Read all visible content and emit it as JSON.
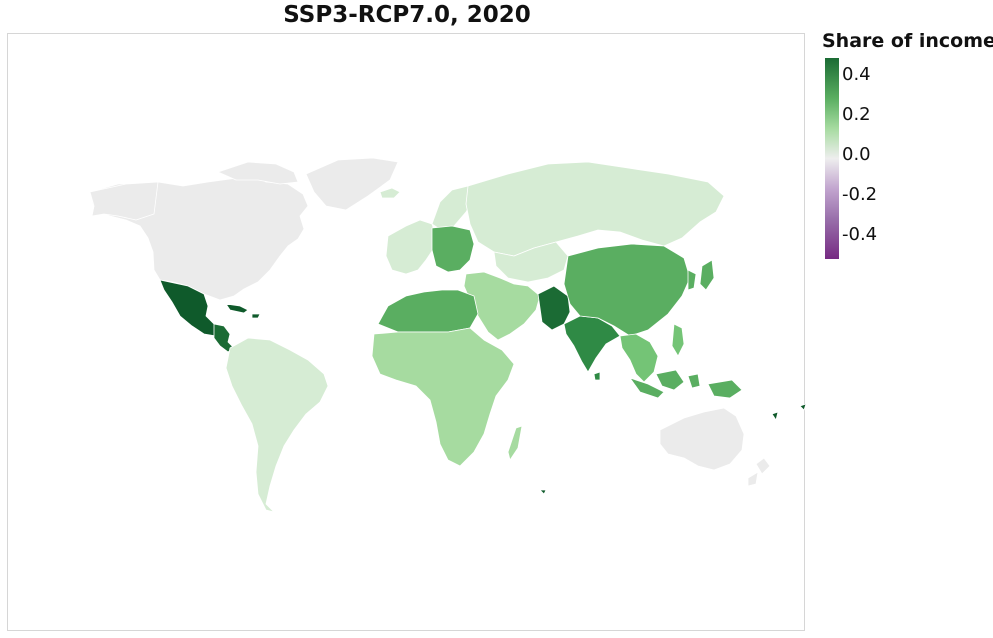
{
  "chart_title": "SSP3-RCP7.0, 2020",
  "legend": {
    "title": "Share of income",
    "ticks": [
      "0.4",
      "0.2",
      "0.0",
      "-0.2",
      "-0.4"
    ],
    "range": [
      -0.5,
      0.5
    ],
    "colors": [
      "#1b6b34",
      "#5aae61",
      "#a6dba0",
      "#eeeeee",
      "#c2a5cf",
      "#9970ab",
      "#762a83"
    ]
  },
  "chart_data": {
    "type": "choropleth",
    "title": "SSP3-RCP7.0, 2020",
    "legend_title": "Share of income",
    "scale": [
      -0.5,
      0.5
    ],
    "regions": [
      {
        "name": "North America",
        "value": 0.0
      },
      {
        "name": "Greenland",
        "value": 0.0
      },
      {
        "name": "Mexico",
        "value": 0.5
      },
      {
        "name": "Central America",
        "value": 0.45
      },
      {
        "name": "Caribbean",
        "value": 0.5
      },
      {
        "name": "South America",
        "value": 0.1
      },
      {
        "name": "Western Europe",
        "value": 0.1
      },
      {
        "name": "Eastern Europe",
        "value": 0.3
      },
      {
        "name": "Russia",
        "value": 0.1
      },
      {
        "name": "North Africa",
        "value": 0.3
      },
      {
        "name": "Sub-Saharan Africa",
        "value": 0.2
      },
      {
        "name": "Middle East",
        "value": 0.2
      },
      {
        "name": "Pakistan",
        "value": 0.4
      },
      {
        "name": "India",
        "value": 0.4
      },
      {
        "name": "China",
        "value": 0.3
      },
      {
        "name": "Southeast Asia",
        "value": 0.25
      },
      {
        "name": "Indonesia",
        "value": 0.3
      },
      {
        "name": "Australia",
        "value": 0.0
      },
      {
        "name": "New Zealand",
        "value": 0.0
      }
    ]
  }
}
